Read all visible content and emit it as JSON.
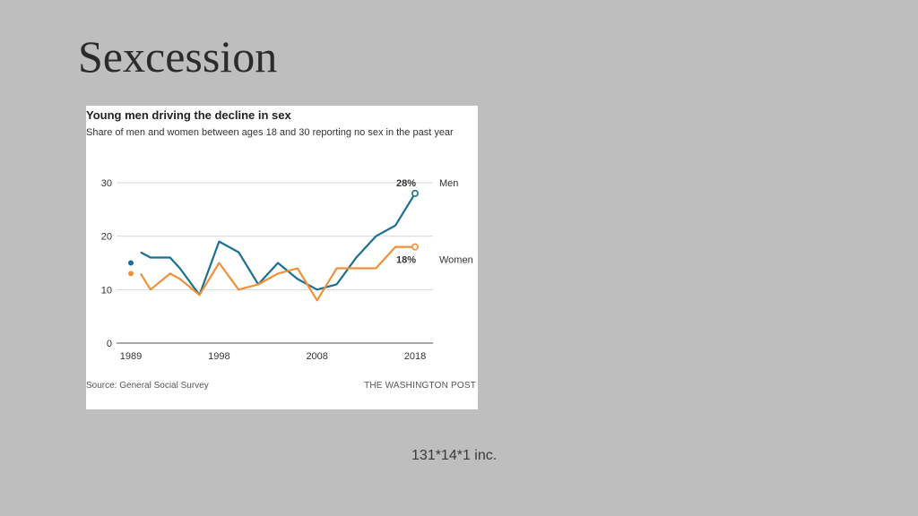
{
  "slide": {
    "title": "Sexcession",
    "footer_note": "131*14*1 inc."
  },
  "chart_data": {
    "type": "line",
    "title": "Young men driving the decline in sex",
    "subtitle": "Share of men and women between ages 18 and 30 reporting no sex in the past year",
    "xlabel": "",
    "ylabel": "",
    "x_ticks": [
      "1989",
      "1998",
      "2008",
      "2018"
    ],
    "y_ticks": [
      0,
      10,
      20,
      30
    ],
    "xlim": [
      1989,
      2018
    ],
    "ylim": [
      0,
      30
    ],
    "grid": true,
    "series": [
      {
        "name": "Men",
        "color": "#1b7091",
        "end_label": "28%",
        "points": [
          [
            1989,
            15
          ],
          [
            1990,
            17
          ],
          [
            1991,
            16
          ],
          [
            1993,
            16
          ],
          [
            1994,
            14
          ],
          [
            1996,
            9
          ],
          [
            1998,
            19
          ],
          [
            2000,
            17
          ],
          [
            2002,
            11
          ],
          [
            2004,
            15
          ],
          [
            2006,
            12
          ],
          [
            2008,
            10
          ],
          [
            2010,
            11
          ],
          [
            2012,
            16
          ],
          [
            2014,
            20
          ],
          [
            2016,
            22
          ],
          [
            2018,
            28
          ]
        ]
      },
      {
        "name": "Women",
        "color": "#f0913a",
        "end_label": "18%",
        "points": [
          [
            1989,
            13
          ],
          [
            1990,
            13
          ],
          [
            1991,
            10
          ],
          [
            1993,
            13
          ],
          [
            1994,
            12
          ],
          [
            1996,
            9
          ],
          [
            1998,
            15
          ],
          [
            2000,
            10
          ],
          [
            2002,
            11
          ],
          [
            2004,
            13
          ],
          [
            2006,
            14
          ],
          [
            2008,
            8
          ],
          [
            2010,
            14
          ],
          [
            2012,
            14
          ],
          [
            2014,
            14
          ],
          [
            2016,
            18
          ],
          [
            2018,
            18
          ]
        ]
      }
    ],
    "source": "Source: General Social Survey",
    "credit": "THE WASHINGTON POST"
  }
}
